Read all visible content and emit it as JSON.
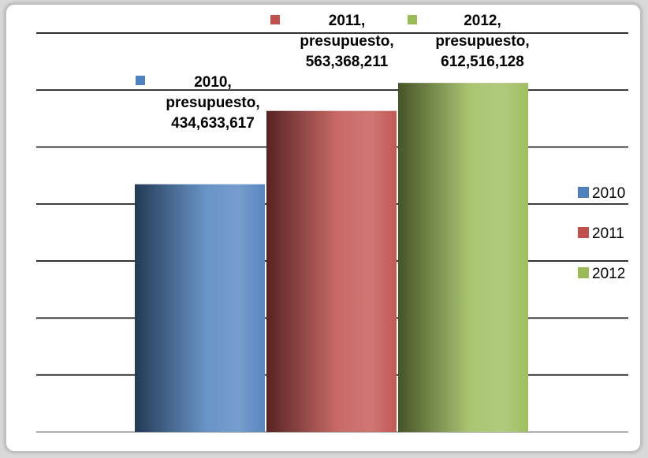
{
  "chart_data": {
    "type": "bar",
    "categories": [
      "presupuesto"
    ],
    "series": [
      {
        "name": "2010",
        "values": [
          434633617
        ],
        "color": "#4f81bd",
        "label": [
          "2010,",
          "presupuesto,",
          "434,633,617"
        ]
      },
      {
        "name": "2011",
        "values": [
          563368211
        ],
        "color": "#c0504d",
        "label": [
          "2011,",
          "presupuesto,",
          "563,368,211"
        ]
      },
      {
        "name": "2012",
        "values": [
          612516128
        ],
        "color": "#9bbb59",
        "label": [
          "2012,",
          "presupuesto,",
          "612,516,128"
        ]
      }
    ],
    "ylim": [
      0,
      700000000
    ],
    "gridlines": true,
    "legend": {
      "position": "right",
      "entries": [
        "2010",
        "2011",
        "2012"
      ]
    }
  }
}
